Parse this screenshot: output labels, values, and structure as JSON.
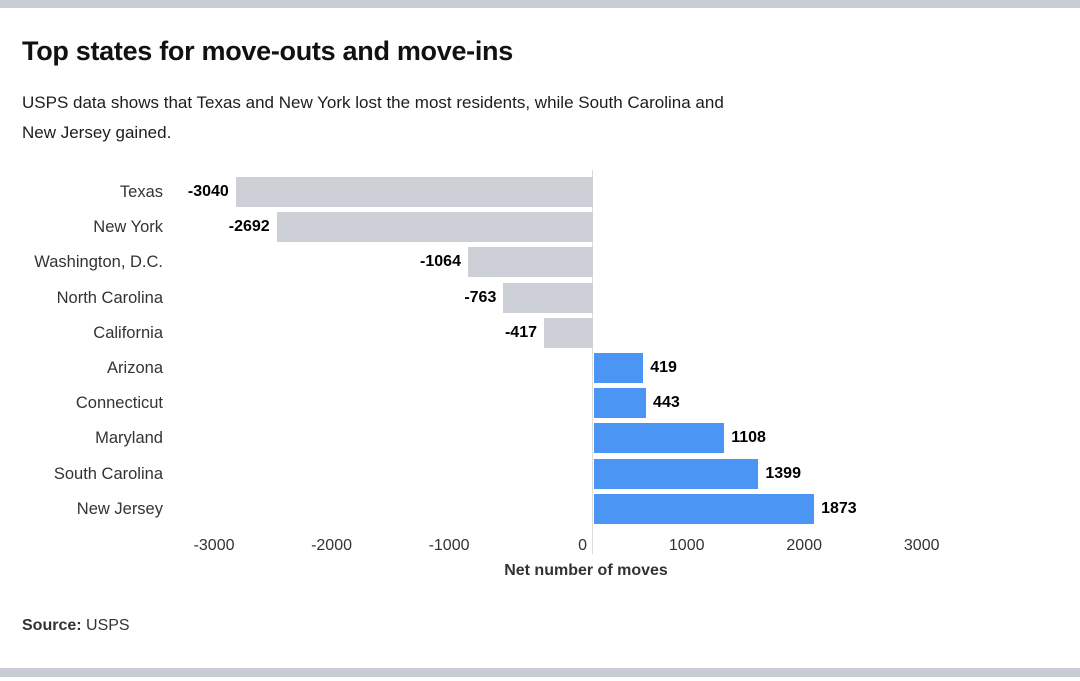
{
  "chart_data": {
    "type": "bar",
    "orientation": "horizontal",
    "title": "Top states for move-outs and move-ins",
    "subtitle_lines": [
      "USPS data shows that Texas and New York lost the most residents, while South Carolina and",
      "New Jersey gained."
    ],
    "categories": [
      "Texas",
      "New York",
      "Washington, D.C.",
      "North Carolina",
      "California",
      "Arizona",
      "Connecticut",
      "Maryland",
      "South Carolina",
      "New Jersey"
    ],
    "values": [
      -3040,
      -2692,
      -1064,
      -763,
      -417,
      419,
      443,
      1108,
      1399,
      1873
    ],
    "value_labels": [
      "-3040",
      "-2692",
      "-1064",
      "-763",
      "-417",
      "419",
      "443",
      "1108",
      "1399",
      "1873"
    ],
    "xlabel": "Net number of moves",
    "x_ticks": [
      -3000,
      -2000,
      -1000,
      0,
      1000,
      2000,
      3000
    ],
    "x_tick_labels": [
      "-3000",
      "-2000",
      "-1000",
      "0",
      "1000",
      "2000",
      "3000"
    ],
    "xlim": [
      -3300,
      3300
    ],
    "grid": "off",
    "legend": "none",
    "colors": {
      "negative_bar": "#cccfd6",
      "positive_bar": "#4b96f5",
      "axis_line": "#dcdcdc",
      "border_strip": "#c9ccd5"
    }
  },
  "source": {
    "label": "Source:",
    "value": "USPS"
  }
}
